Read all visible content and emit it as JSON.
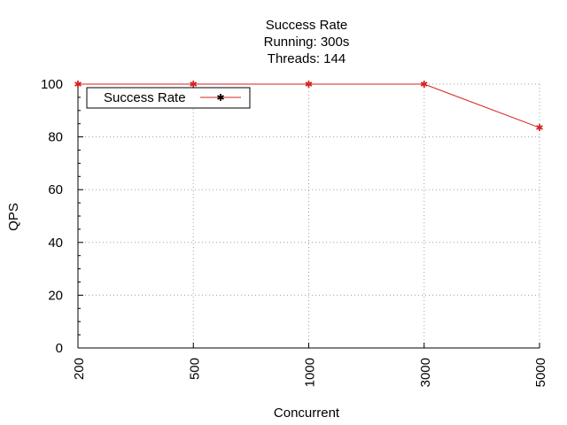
{
  "chart_data": {
    "type": "line",
    "title_lines": [
      "Success Rate",
      "Running: 300s",
      "Threads: 144"
    ],
    "xlabel": "Concurrent",
    "ylabel": "QPS",
    "categories": [
      "200",
      "500",
      "1000",
      "3000",
      "5000"
    ],
    "series": [
      {
        "name": "Success Rate",
        "values": [
          100,
          100,
          100,
          100,
          83.5
        ]
      }
    ],
    "ylim": [
      0,
      100
    ],
    "yticks": [
      0,
      20,
      40,
      60,
      80,
      100
    ],
    "grid": true,
    "legend_position": "top-left",
    "series_color": "#d62020"
  }
}
